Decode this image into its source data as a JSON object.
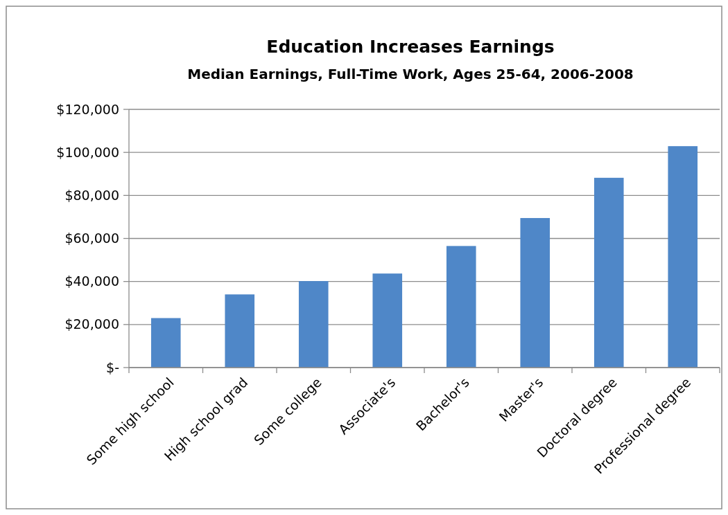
{
  "chart_data": {
    "type": "bar",
    "title": "Education Increases Earnings",
    "subtitle": "Median Earnings, Full-Time Work, Ages 25-64, 2006-2008",
    "categories": [
      "Some high school",
      "High school grad",
      "Some college",
      "Associate's",
      "Bachelor's",
      "Master's",
      "Doctoral degree",
      "Professional degree"
    ],
    "values": [
      23000,
      34000,
      40200,
      43700,
      56500,
      69500,
      88200,
      102900
    ],
    "color": "#4f87c8",
    "ylim": [
      0,
      120000
    ],
    "yticks": [
      {
        "value": 0,
        "label": "$-"
      },
      {
        "value": 20000,
        "label": "$20,000"
      },
      {
        "value": 40000,
        "label": "$40,000"
      },
      {
        "value": 60000,
        "label": "$60,000"
      },
      {
        "value": 80000,
        "label": "$80,000"
      },
      {
        "value": 100000,
        "label": "$100,000"
      },
      {
        "value": 120000,
        "label": "$120,000"
      }
    ],
    "grid": "y"
  }
}
